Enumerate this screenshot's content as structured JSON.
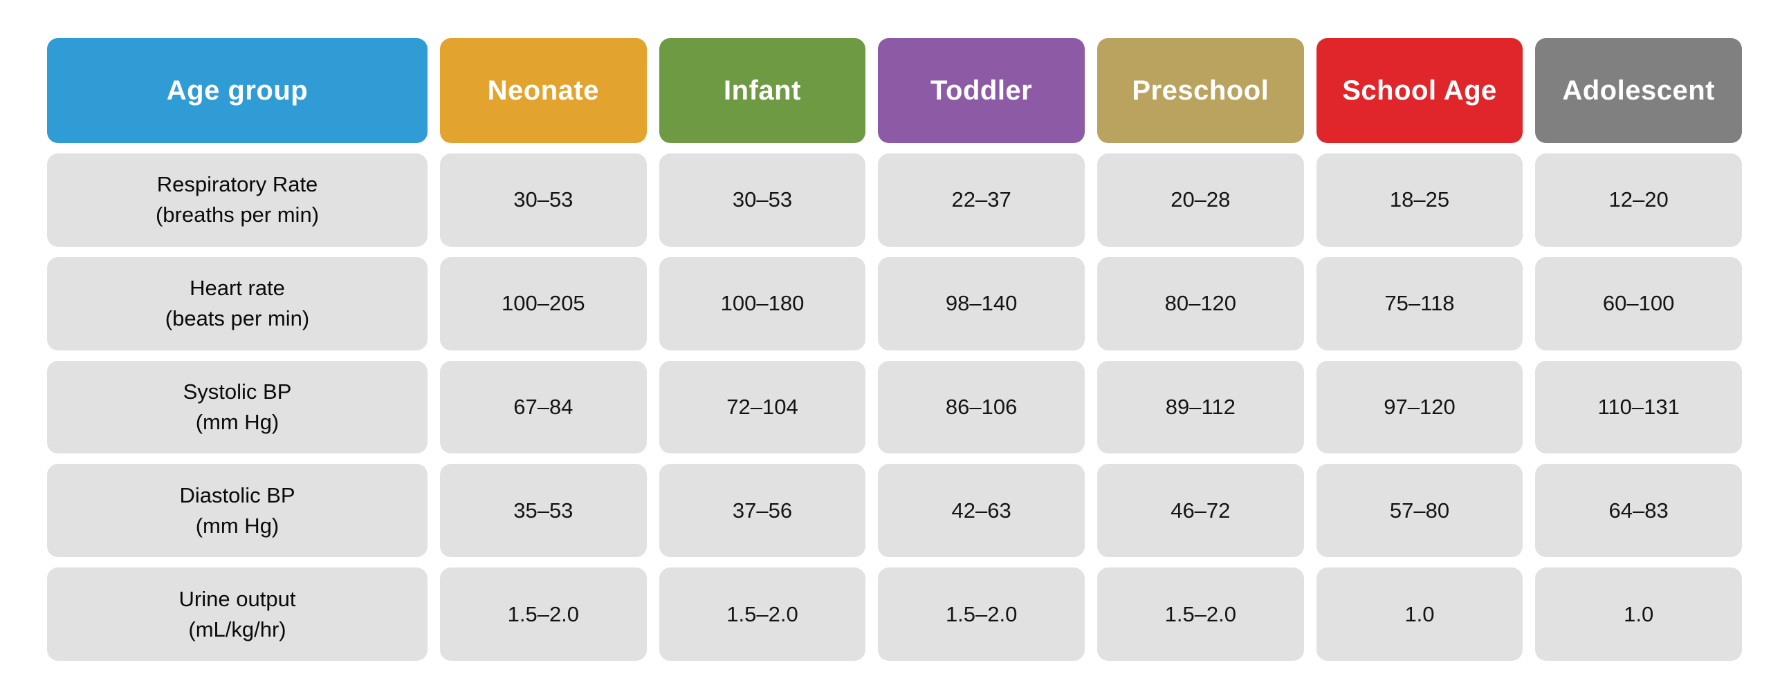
{
  "page": {
    "background": "#FFFFFF"
  },
  "table": {
    "header": {
      "age_group": {
        "label": "Age group",
        "color": "#2F9CD6"
      },
      "columns": [
        {
          "label": "Neonate",
          "color": "#E2A42E"
        },
        {
          "label": "Infant",
          "color": "#6F9A44"
        },
        {
          "label": "Toddler",
          "color": "#8D5AA6"
        },
        {
          "label": "Preschool",
          "color": "#B9A35E"
        },
        {
          "label": "School Age",
          "color": "#E0252B"
        },
        {
          "label": "Adolescent",
          "color": "#808080"
        }
      ]
    },
    "cell_background": "#E1E1E1",
    "value_text_color": "#141414",
    "rows": [
      {
        "name": "Respiratory Rate",
        "unit": "(breaths per min)",
        "values": [
          "30–53",
          "30–53",
          "22–37",
          "20–28",
          "18–25",
          "12–20"
        ]
      },
      {
        "name": "Heart rate",
        "unit": "(beats per min)",
        "values": [
          "100–205",
          "100–180",
          "98–140",
          "80–120",
          "75–118",
          "60–100"
        ]
      },
      {
        "name": "Systolic BP",
        "unit": "(mm Hg)",
        "values": [
          "67–84",
          "72–104",
          "86–106",
          "89–112",
          "97–120",
          "110–131"
        ]
      },
      {
        "name": "Diastolic BP",
        "unit": "(mm Hg)",
        "values": [
          "35–53",
          "37–56",
          "42–63",
          "46–72",
          "57–80",
          "64–83"
        ]
      },
      {
        "name": "Urine output",
        "unit": "(mL/kg/hr)",
        "values": [
          "1.5–2.0",
          "1.5–2.0",
          "1.5–2.0",
          "1.5–2.0",
          "1.0",
          "1.0"
        ]
      }
    ]
  },
  "chart_data": {
    "type": "table",
    "columns": [
      "Age group",
      "Neonate",
      "Infant",
      "Toddler",
      "Preschool",
      "School Age",
      "Adolescent"
    ],
    "column_colors": [
      "#2F9CD6",
      "#E2A42E",
      "#6F9A44",
      "#8D5AA6",
      "#B9A35E",
      "#E0252B",
      "#808080"
    ],
    "rows": [
      [
        "Respiratory Rate (breaths per min)",
        "30–53",
        "30–53",
        "22–37",
        "20–28",
        "18–25",
        "12–20"
      ],
      [
        "Heart rate (beats per min)",
        "100–205",
        "100–180",
        "98–140",
        "80–120",
        "75–118",
        "60–100"
      ],
      [
        "Systolic BP (mm Hg)",
        "67–84",
        "72–104",
        "86–106",
        "89–112",
        "97–120",
        "110–131"
      ],
      [
        "Diastolic BP (mm Hg)",
        "35–53",
        "37–56",
        "42–63",
        "46–72",
        "57–80",
        "64–83"
      ],
      [
        "Urine output (mL/kg/hr)",
        "1.5–2.0",
        "1.5–2.0",
        "1.5–2.0",
        "1.5–2.0",
        "1.0",
        "1.0"
      ]
    ]
  }
}
